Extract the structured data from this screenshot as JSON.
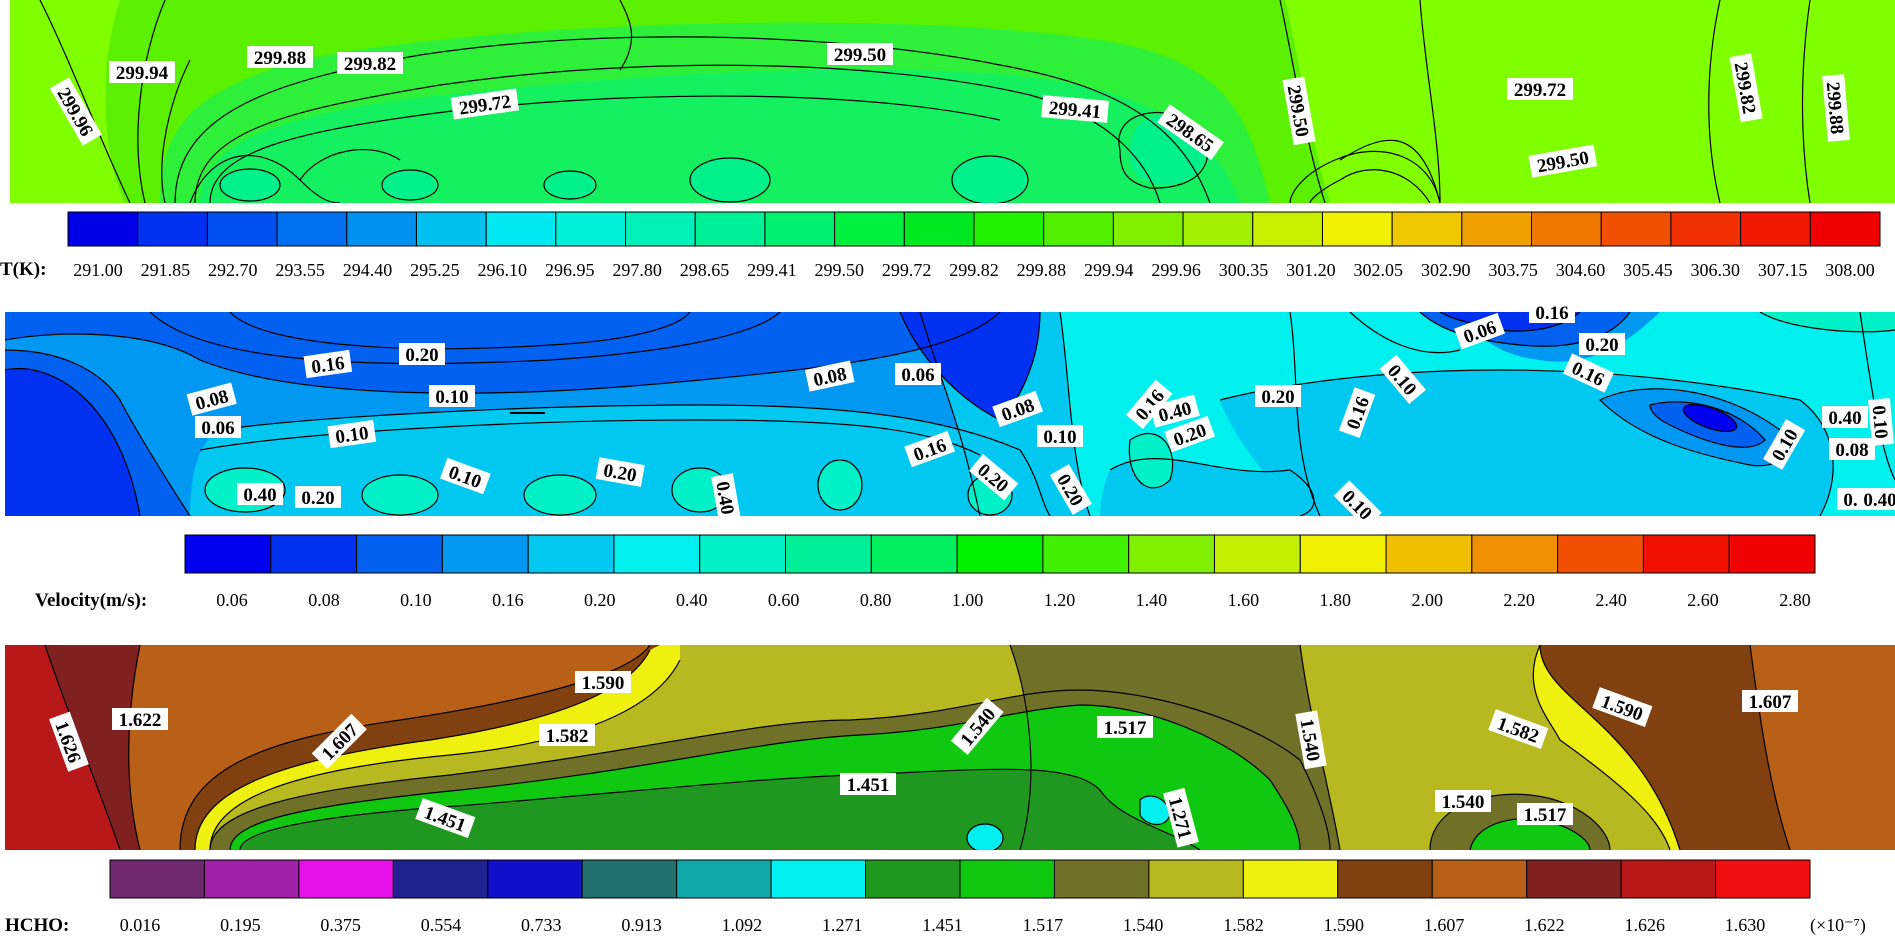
{
  "chart_data": [
    {
      "type": "heatmap",
      "title": "",
      "colorbar": {
        "label": "T(K):",
        "ticks": [
          "291.00",
          "291.85",
          "292.70",
          "293.55",
          "294.40",
          "295.25",
          "296.10",
          "296.95",
          "297.80",
          "298.65",
          "299.41",
          "299.50",
          "299.72",
          "299.82",
          "299.88",
          "299.94",
          "299.96",
          "300.35",
          "301.20",
          "302.05",
          "302.90",
          "303.75",
          "304.60",
          "305.45",
          "306.30",
          "307.15",
          "308.00"
        ],
        "colors": [
          "#0000e8",
          "#0030f0",
          "#0050f0",
          "#0070f0",
          "#0090f0",
          "#00c0f0",
          "#00e8f0",
          "#00f0d8",
          "#00f0b8",
          "#00f098",
          "#00f070",
          "#00f040",
          "#00e820",
          "#20f000",
          "#50f000",
          "#80f000",
          "#a0f000",
          "#c8f000",
          "#f0f000",
          "#f0c800",
          "#f0a000",
          "#f07800",
          "#f05000",
          "#f03000",
          "#f01800",
          "#f00000"
        ]
      },
      "contour_labels": [
        "299.94",
        "299.88",
        "299.82",
        "299.96",
        "299.72",
        "299.50",
        "299.41",
        "298.65",
        "299.50",
        "299.50",
        "299.72",
        "299.82",
        "299.88"
      ]
    },
    {
      "type": "heatmap",
      "title": "",
      "colorbar": {
        "label": "Velocity(m/s):",
        "ticks": [
          "0.06",
          "0.08",
          "0.10",
          "0.16",
          "0.20",
          "0.40",
          "0.60",
          "0.80",
          "1.00",
          "1.20",
          "1.40",
          "1.60",
          "1.80",
          "2.00",
          "2.20",
          "2.40",
          "2.60",
          "2.80"
        ],
        "colors": [
          "#0000f0",
          "#0030f0",
          "#0060f0",
          "#0098f0",
          "#00c8f0",
          "#00f0f0",
          "#00f0c8",
          "#00f098",
          "#00f060",
          "#00f000",
          "#40f000",
          "#80f000",
          "#c0f000",
          "#f0f000",
          "#f0c000",
          "#f09000",
          "#f05000",
          "#f01000",
          "#f00000"
        ]
      },
      "contour_labels": [
        "0.16",
        "0.20",
        "0.08",
        "0.10",
        "0.06",
        "0.10",
        "0.08",
        "0.06",
        "0.08",
        "0.10",
        "0.16",
        "0.20",
        "0.20",
        "0.16",
        "0.10",
        "0.06",
        "0.16",
        "0.10",
        "0.40",
        "0.20",
        "0.10",
        "0.20",
        "0.40",
        "0.16",
        "0.20",
        "0.20",
        "0.40",
        "0.10",
        "0.40",
        "0.08",
        "0.10",
        "0.16",
        "0.40",
        "0.20",
        "0.16"
      ]
    },
    {
      "type": "heatmap",
      "title": "",
      "colorbar": {
        "label": "HCHO:",
        "ticks": [
          "0.016",
          "0.195",
          "0.375",
          "0.554",
          "0.733",
          "0.913",
          "1.092",
          "1.271",
          "1.451",
          "1.517",
          "1.540",
          "1.582",
          "1.590",
          "1.607",
          "1.622",
          "1.626",
          "1.630"
        ],
        "colors": [
          "#702870",
          "#a020a8",
          "#e810e8",
          "#202090",
          "#1010c8",
          "#207070",
          "#10a8a8",
          "#00f0f0",
          "#209820",
          "#10c810",
          "#707028",
          "#b8b820",
          "#f0f010",
          "#804010",
          "#b86018",
          "#802020",
          "#b81818",
          "#f01010"
        ],
        "multiplier": "(×10⁻⁷)"
      },
      "contour_labels": [
        "1.626",
        "1.622",
        "1.607",
        "1.590",
        "1.582",
        "1.540",
        "1.517",
        "1.540",
        "1.590",
        "1.582",
        "1.607",
        "1.451",
        "1.451",
        "1.271",
        "1.540",
        "1.517"
      ]
    }
  ]
}
